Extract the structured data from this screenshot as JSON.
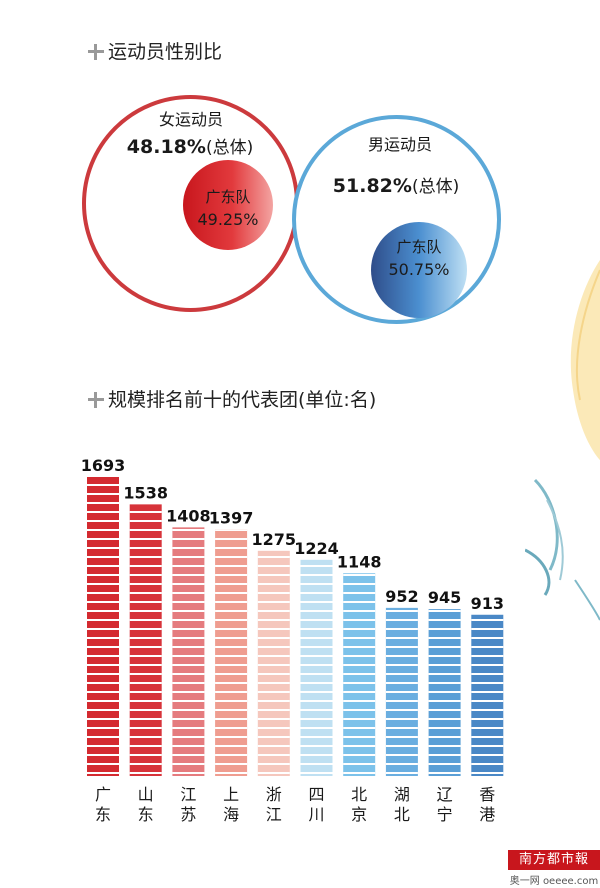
{
  "section1": {
    "title": "运动员性别比"
  },
  "female": {
    "label": "女运动员",
    "value": "48.18%",
    "suffix": "(总体)",
    "team_label": "广东队",
    "team_value": "49.25%"
  },
  "male": {
    "label": "男运动员",
    "value": "51.82%",
    "suffix": "(总体)",
    "team_label": "广东队",
    "team_value": "50.75%"
  },
  "section2": {
    "title": "规模排名前十的代表团(单位:名)"
  },
  "colors": {
    "female_ring": "#cc3a3d",
    "male_ring": "#5ba8d8",
    "bars": [
      "#d42a30",
      "#d7333a",
      "#e57b7e",
      "#ef9d90",
      "#f5c7bd",
      "#bfe0f2",
      "#7cc2ea",
      "#6aaee0",
      "#5b9fd6",
      "#4a88c6"
    ]
  },
  "chart_data": {
    "type": "bar",
    "title": "规模排名前十的代表团(单位:名)",
    "categories": [
      "广东",
      "山东",
      "江苏",
      "上海",
      "浙江",
      "四川",
      "北京",
      "湖北",
      "辽宁",
      "香港"
    ],
    "category_chars": [
      [
        "广",
        "东"
      ],
      [
        "山",
        "东"
      ],
      [
        "江",
        "苏"
      ],
      [
        "上",
        "海"
      ],
      [
        "浙",
        "江"
      ],
      [
        "四",
        "川"
      ],
      [
        "北",
        "京"
      ],
      [
        "湖",
        "北"
      ],
      [
        "辽",
        "宁"
      ],
      [
        "香",
        "港"
      ]
    ],
    "values": [
      1693,
      1538,
      1408,
      1397,
      1275,
      1224,
      1148,
      952,
      945,
      913
    ],
    "ylim": [
      0,
      1693
    ],
    "grid": false,
    "legend": "none"
  },
  "logo": {
    "name": "南方都市報",
    "sub": "奥一网 oeeee.com"
  }
}
